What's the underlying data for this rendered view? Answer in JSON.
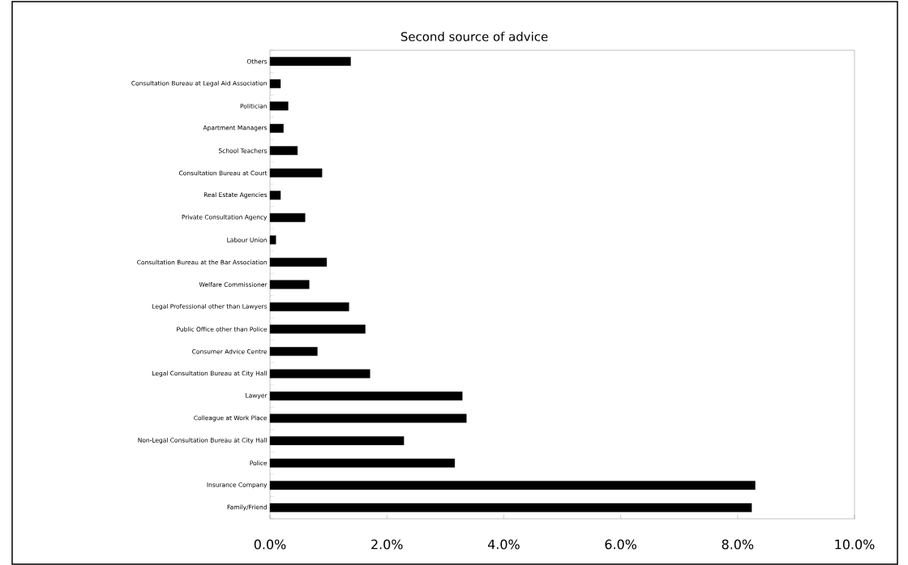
{
  "chart_data": {
    "type": "bar",
    "orientation": "horizontal",
    "title": "Second source of advice",
    "categories": [
      "Others",
      "Consultation Bureau at Legal Aid Association",
      "Politician",
      "Apartment Managers",
      "School Teachers",
      "Consultation Bureau at  Court",
      "Real Estate Agencies",
      "Private Consultation Agency",
      "Labour Union",
      "Consultation Bureau at the Bar Association",
      "Welfare Commissioner",
      "Legal Professional other than Lawyers",
      "Public Office other than Police",
      "Consumer Advice Centre",
      "Legal Consultation Bureau at City Hall",
      "Lawyer",
      "Colleague at Work Place",
      "Non-Legal Consultation Bureau at City Hall",
      "Police",
      "Insurance Company",
      "Family/Friend"
    ],
    "values": [
      1.38,
      0.18,
      0.31,
      0.23,
      0.47,
      0.89,
      0.18,
      0.6,
      0.1,
      0.97,
      0.67,
      1.35,
      1.63,
      0.81,
      1.71,
      3.29,
      3.36,
      2.29,
      3.16,
      8.3,
      8.24
    ],
    "color": "#000000",
    "xlim": [
      0,
      10
    ],
    "xticks": [
      {
        "value": 0,
        "label": "0.0%"
      },
      {
        "value": 2,
        "label": "2.0%"
      },
      {
        "value": 4,
        "label": "4.0%"
      },
      {
        "value": 6,
        "label": "6.0%"
      },
      {
        "value": 8,
        "label": "8.0%"
      },
      {
        "value": 10,
        "label": "10.0%"
      }
    ],
    "grid": false
  }
}
